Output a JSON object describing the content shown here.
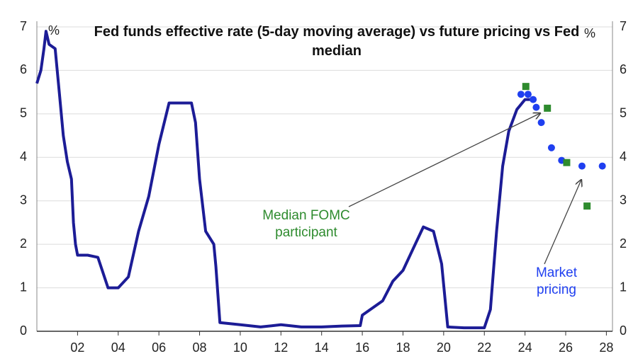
{
  "chart_data": {
    "type": "line",
    "title": "Fed funds effective rate (5-day moving average) vs future pricing vs Fed median",
    "ylabel": "%",
    "y2label": "%",
    "xlim": [
      2000,
      2028.3
    ],
    "xticks": [
      {
        "value": 2002,
        "label": "02"
      },
      {
        "value": 2004,
        "label": "04"
      },
      {
        "value": 2006,
        "label": "06"
      },
      {
        "value": 2008,
        "label": "08"
      },
      {
        "value": 2010,
        "label": "10"
      },
      {
        "value": 2012,
        "label": "12"
      },
      {
        "value": 2014,
        "label": "14"
      },
      {
        "value": 2016,
        "label": "16"
      },
      {
        "value": 2018,
        "label": "18"
      },
      {
        "value": 2020,
        "label": "20"
      },
      {
        "value": 2022,
        "label": "22"
      },
      {
        "value": 2024,
        "label": "24"
      },
      {
        "value": 2026,
        "label": "26"
      },
      {
        "value": 2028,
        "label": "28"
      }
    ],
    "ylim": [
      0,
      7
    ],
    "yticks": [
      0,
      1,
      2,
      3,
      4,
      5,
      6,
      7
    ],
    "y2lim": [
      0,
      7
    ],
    "y2ticks": [
      0,
      1,
      2,
      3,
      4,
      5,
      6,
      7
    ],
    "grid": true,
    "series": [
      {
        "style": "line",
        "color": "#1c1c96",
        "x": [
          2000.0,
          2000.2,
          2000.35,
          2000.45,
          2000.6,
          2000.9,
          2001.0,
          2001.1,
          2001.3,
          2001.5,
          2001.7,
          2001.8,
          2001.9,
          2002.0,
          2002.5,
          2003.0,
          2003.5,
          2004.0,
          2004.5,
          2005.0,
          2005.5,
          2006.0,
          2006.5,
          2007.0,
          2007.6,
          2007.8,
          2008.0,
          2008.3,
          2008.7,
          2008.8,
          2009.0,
          2010.0,
          2011.0,
          2012.0,
          2013.0,
          2014.0,
          2015.0,
          2015.9,
          2016.0,
          2017.0,
          2017.5,
          2018.0,
          2018.5,
          2019.0,
          2019.5,
          2019.9,
          2020.2,
          2021.0,
          2022.0,
          2022.3,
          2022.6,
          2022.9,
          2023.2,
          2023.6,
          2024.0,
          2024.3
        ],
        "values": [
          5.7,
          6.0,
          6.5,
          6.9,
          6.6,
          6.5,
          6.0,
          5.5,
          4.5,
          3.9,
          3.5,
          2.5,
          2.0,
          1.75,
          1.75,
          1.7,
          1.0,
          1.0,
          1.25,
          2.3,
          3.1,
          4.3,
          5.25,
          5.25,
          5.25,
          4.8,
          3.5,
          2.3,
          2.0,
          1.5,
          0.2,
          0.15,
          0.1,
          0.15,
          0.1,
          0.1,
          0.12,
          0.13,
          0.37,
          0.7,
          1.15,
          1.4,
          1.9,
          2.4,
          2.3,
          1.55,
          0.1,
          0.08,
          0.08,
          0.5,
          2.3,
          3.8,
          4.6,
          5.1,
          5.33,
          5.33
        ]
      },
      {
        "style": "dots",
        "color": "#1f3ff0",
        "x": [
          2023.8,
          2024.15,
          2024.4,
          2024.55,
          2024.8,
          2025.3,
          2025.8,
          2026.8,
          2027.8
        ],
        "values": [
          5.45,
          5.45,
          5.33,
          5.15,
          4.8,
          4.22,
          3.93,
          3.8,
          3.8
        ]
      },
      {
        "style": "squares",
        "color": "#2e8b2e",
        "x": [
          2024.04,
          2025.1,
          2026.05,
          2027.05
        ],
        "values": [
          5.63,
          5.13,
          3.88,
          2.88
        ]
      }
    ],
    "annotations": [
      {
        "text": "Median FOMC participant",
        "color": "#2e8b2e"
      },
      {
        "text": "Market pricing",
        "color": "#1f3ff0"
      }
    ]
  }
}
